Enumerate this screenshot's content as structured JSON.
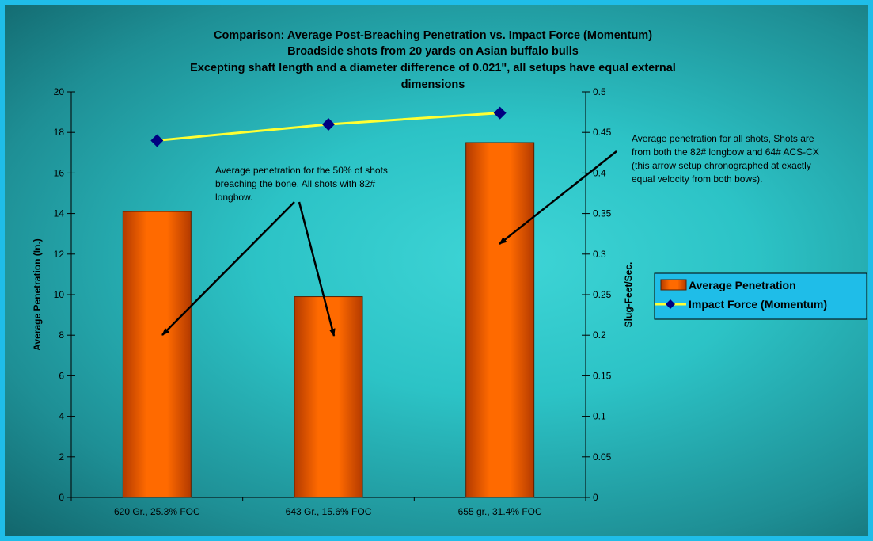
{
  "colors": {
    "border": "#1fbde8",
    "bar_fill": "#ff6600",
    "bar_edge": "#5a2000",
    "line": "#ffff33",
    "marker": "#000080",
    "legend_bg": "#1fbde8"
  },
  "chart_data": {
    "type": "bar",
    "title_lines": [
      "Comparison: Average Post-Breaching Penetration vs. Impact Force (Momentum)",
      "Broadside shots from 20 yards on Asian buffalo bulls",
      "Excepting shaft length and a diameter difference of 0.021\", all setups have equal external",
      "dimensions"
    ],
    "categories": [
      "620 Gr., 25.3% FOC",
      "643 Gr., 15.6% FOC",
      "655 gr., 31.4% FOC"
    ],
    "series": [
      {
        "name": "Average Penetration",
        "type": "bar",
        "axis": "left",
        "values": [
          14.1,
          9.9,
          17.5
        ]
      },
      {
        "name": "Impact Force (Momentum)",
        "type": "line",
        "axis": "right",
        "values": [
          0.44,
          0.46,
          0.474
        ]
      }
    ],
    "ylabel": "Average Penetration (In.)",
    "y2label": "Slug-Feet/Sec.",
    "ylim": [
      0,
      20
    ],
    "y2lim": [
      0,
      0.5
    ],
    "yticks": [
      "0",
      "2",
      "4",
      "6",
      "8",
      "10",
      "12",
      "14",
      "16",
      "18",
      "20"
    ],
    "y2ticks": [
      "0",
      "0.05",
      "0.1",
      "0.15",
      "0.2",
      "0.25",
      "0.3",
      "0.35",
      "0.4",
      "0.45",
      "0.5"
    ],
    "grid": false,
    "legend_position": "right",
    "annotations": [
      {
        "id": "breach",
        "lines": [
          "Average penetration for the 50% of shots",
          "breaching the bone. All shots with 82#",
          "longbow."
        ]
      },
      {
        "id": "all",
        "lines": [
          "Average penetration for all shots, Shots are",
          "from both the 82# longbow and 64# ACS-CX",
          "(this arrow setup chronographed at exactly",
          "equal velocity from both bows)."
        ]
      }
    ]
  }
}
